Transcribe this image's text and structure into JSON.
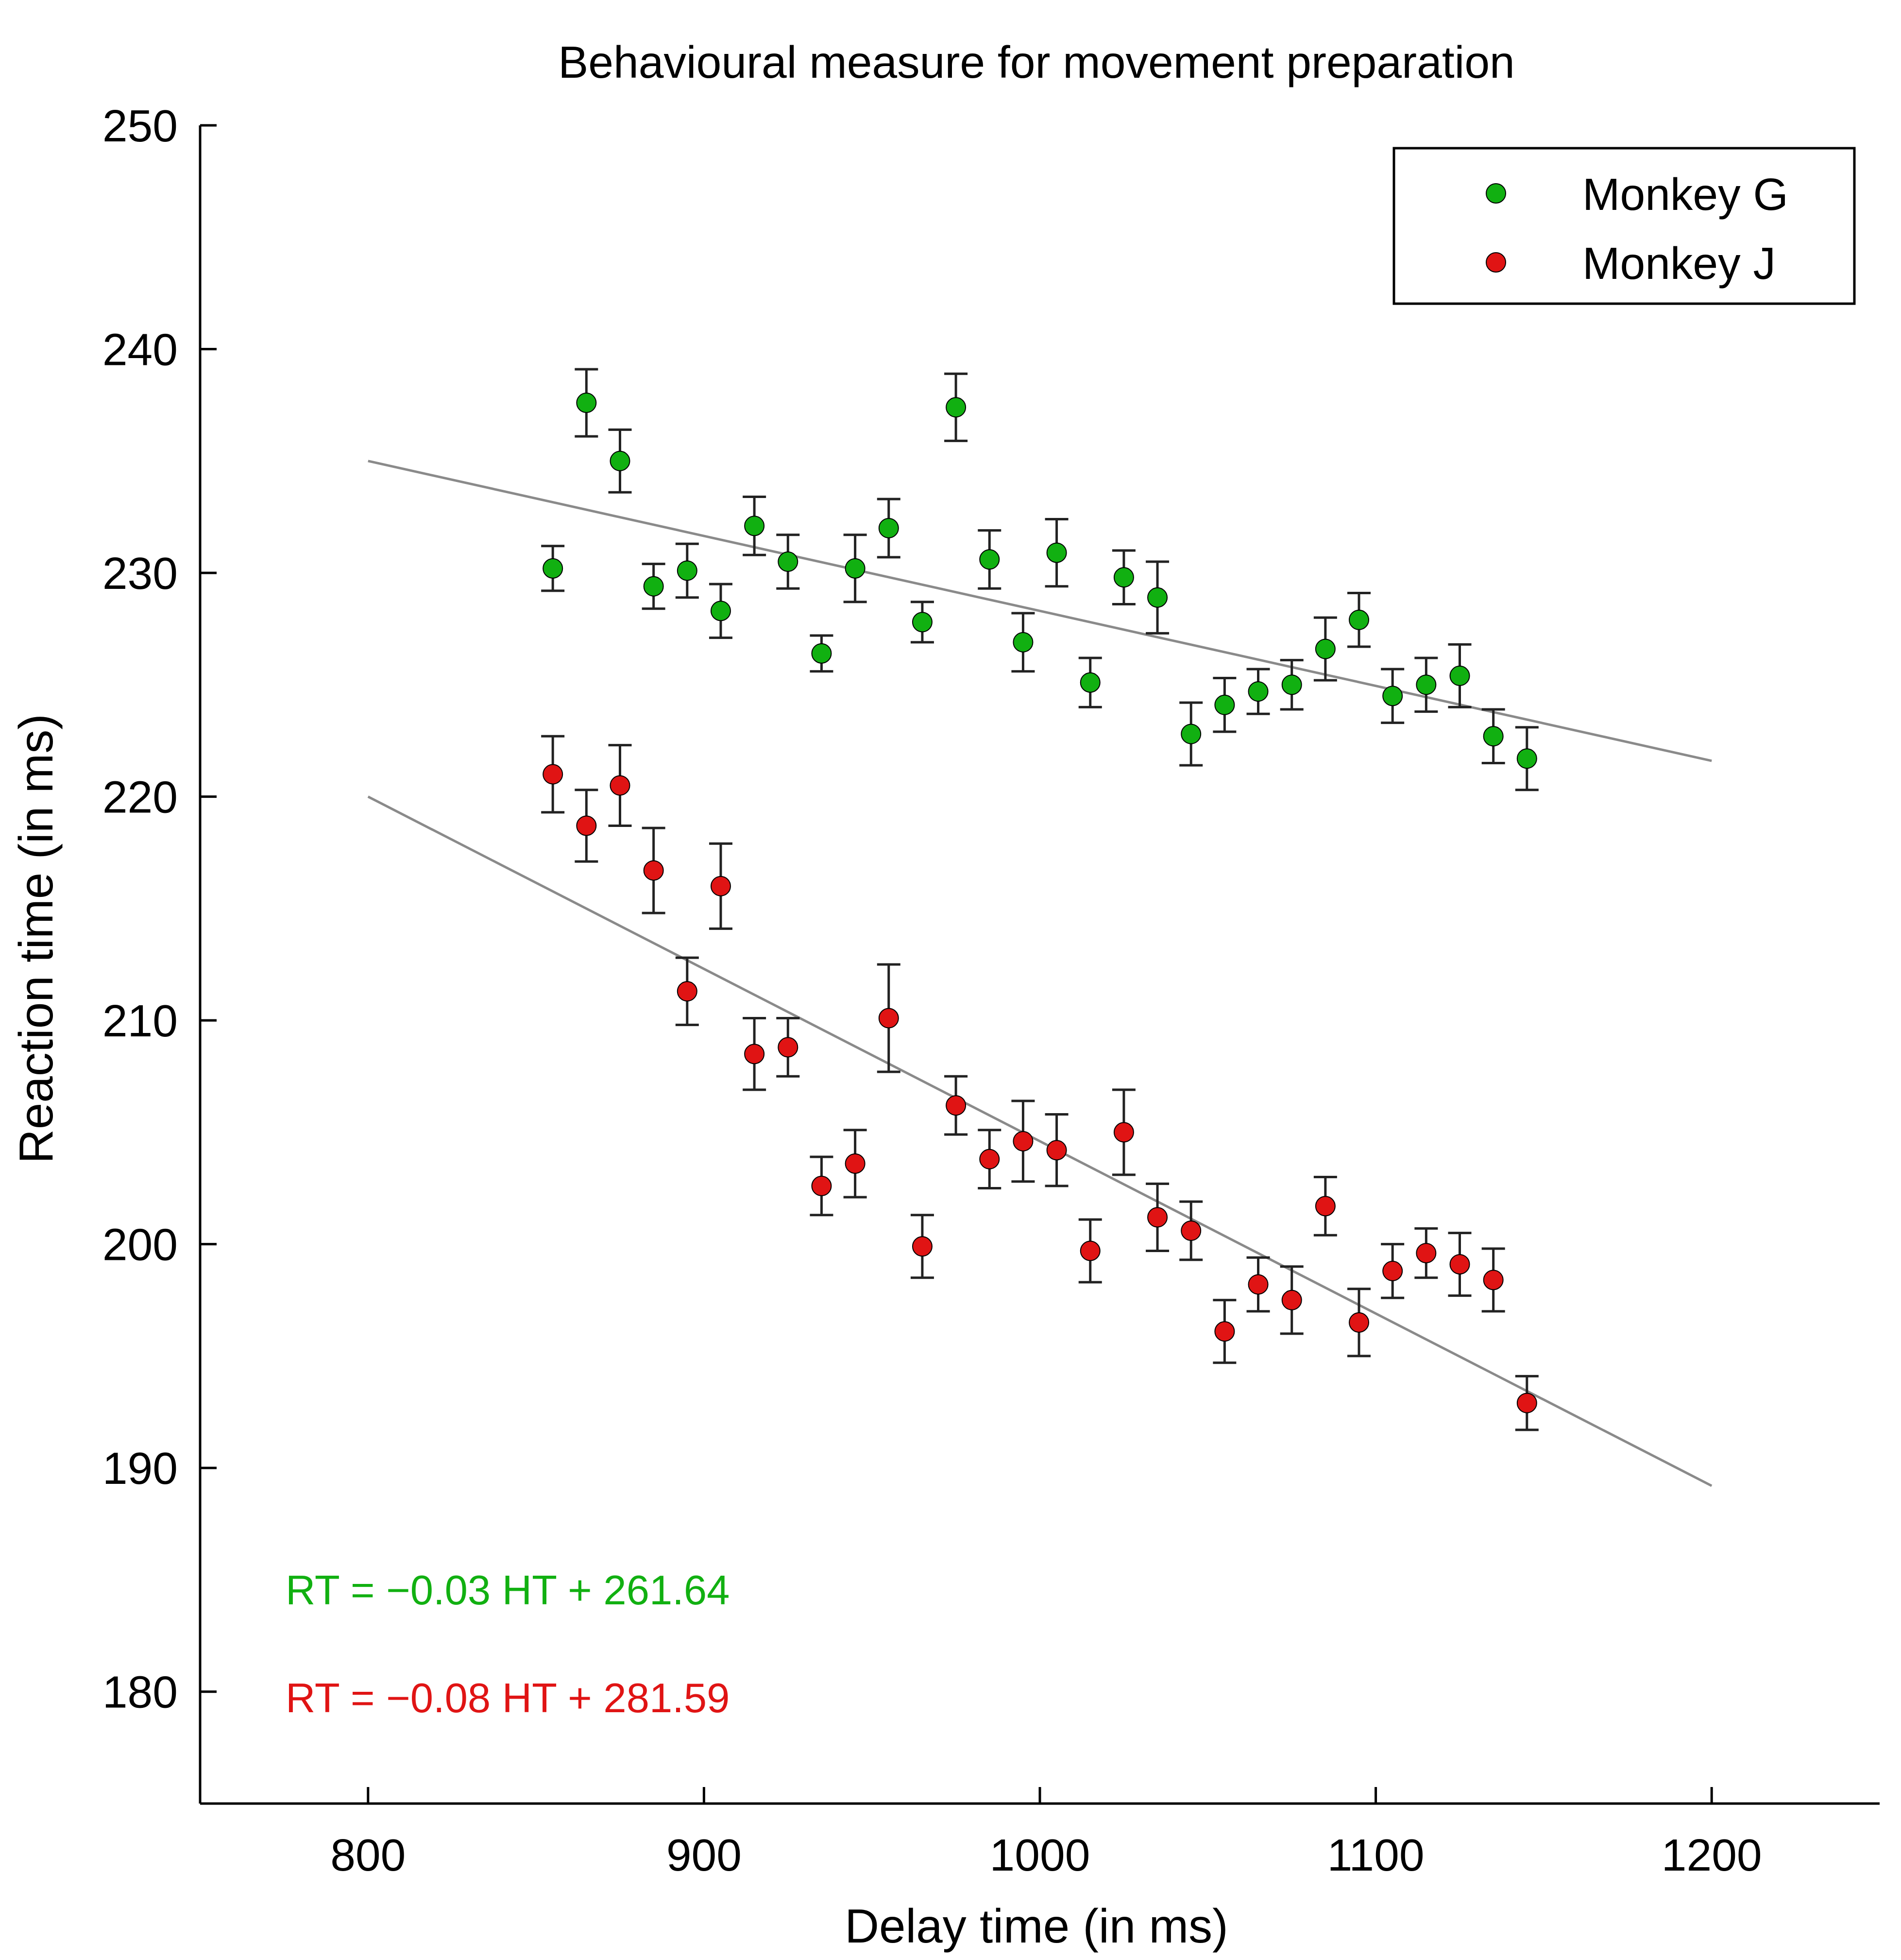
{
  "chart_data": {
    "type": "scatter",
    "title": "Behavioural measure for movement preparation",
    "xlabel": "Delay time (in ms)",
    "ylabel": "Reaction time (in ms)",
    "xlim": [
      750,
      1250
    ],
    "ylim": [
      175,
      250
    ],
    "xticks": [
      "800",
      "900",
      "1000",
      "1100",
      "1200"
    ],
    "yticks": [
      "180",
      "190",
      "200",
      "210",
      "220",
      "230",
      "240",
      "250"
    ],
    "legend_position": "top-right",
    "grid": false,
    "series": [
      {
        "name": "Monkey G",
        "color": "#11b011",
        "x": [
          855,
          865,
          875,
          885,
          895,
          905,
          915,
          925,
          935,
          945,
          955,
          965,
          975,
          985,
          995,
          1005,
          1015,
          1025,
          1035,
          1045,
          1055,
          1065,
          1075,
          1085,
          1095,
          1105,
          1115,
          1125,
          1135,
          1145
        ],
        "y": [
          230.2,
          237.6,
          235.0,
          229.4,
          230.1,
          228.3,
          232.1,
          230.5,
          226.4,
          230.2,
          232.0,
          227.8,
          237.4,
          230.6,
          226.9,
          230.9,
          225.1,
          229.8,
          228.9,
          222.8,
          224.1,
          224.7,
          225.0,
          226.6,
          227.9,
          224.5,
          225.0,
          225.4,
          222.7,
          221.7
        ],
        "err": [
          1.0,
          1.5,
          1.4,
          1.0,
          1.2,
          1.2,
          1.3,
          1.2,
          0.8,
          1.5,
          1.3,
          0.9,
          1.5,
          1.3,
          1.3,
          1.5,
          1.1,
          1.2,
          1.6,
          1.4,
          1.2,
          1.0,
          1.1,
          1.4,
          1.2,
          1.2,
          1.2,
          1.4,
          1.2,
          1.4
        ],
        "fit": {
          "x": [
            800,
            1200
          ],
          "y": [
            235.0,
            221.6
          ]
        }
      },
      {
        "name": "Monkey J",
        "color": "#e01414",
        "x": [
          855,
          865,
          875,
          885,
          895,
          905,
          915,
          925,
          935,
          945,
          955,
          965,
          975,
          985,
          995,
          1005,
          1015,
          1025,
          1035,
          1045,
          1055,
          1065,
          1075,
          1085,
          1095,
          1105,
          1115,
          1125,
          1135,
          1145
        ],
        "y": [
          221.0,
          218.7,
          220.5,
          216.7,
          211.3,
          216.0,
          208.5,
          208.8,
          202.6,
          203.6,
          210.1,
          199.9,
          206.2,
          203.8,
          204.6,
          204.2,
          199.7,
          205.0,
          201.2,
          200.6,
          196.1,
          198.2,
          197.5,
          201.7,
          196.5,
          198.8,
          199.6,
          199.1,
          198.4,
          192.9
        ],
        "err": [
          1.7,
          1.6,
          1.8,
          1.9,
          1.5,
          1.9,
          1.6,
          1.3,
          1.3,
          1.5,
          2.4,
          1.4,
          1.3,
          1.3,
          1.8,
          1.6,
          1.4,
          1.9,
          1.5,
          1.3,
          1.4,
          1.2,
          1.5,
          1.3,
          1.5,
          1.2,
          1.1,
          1.4,
          1.4,
          1.2
        ],
        "fit": {
          "x": [
            800,
            1200
          ],
          "y": [
            220.0,
            189.2
          ]
        }
      }
    ],
    "annotations": [
      {
        "text": "RT = −0.03 HT + 261.64",
        "color": "#11b011"
      },
      {
        "text": "RT = −0.08 HT + 281.59",
        "color": "#e01414"
      }
    ]
  }
}
